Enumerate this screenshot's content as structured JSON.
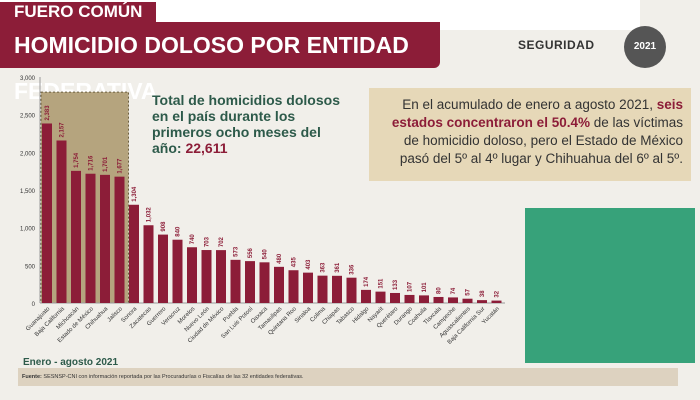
{
  "header": {
    "subtitle": "FUERO COMÚN",
    "title": "HOMICIDIO DOLOSO POR ENTIDAD FEDERATIVA",
    "logo": "SEGURIDAD",
    "seal": "2021"
  },
  "total": {
    "text": "Total de homicidios dolosos en el país durante los primeros ocho meses del año:",
    "value": "22,611"
  },
  "note": {
    "pre": "En el acumulado de enero a agosto 2021, ",
    "highlight": "seis estados concentraron el 50.4%",
    "post": " de las víctimas de homicidio doloso, pero el Estado de México pasó del 5º al 4º lugar y Chihuahua del 6º al 5º."
  },
  "period": "Enero - agosto 2021",
  "source": {
    "label": "Fuente:",
    "text": " SESNSP-CNI con información reportada por las Procuradurías o Fiscalías de las 32 entidades federativas."
  },
  "colors": {
    "bar": "#8c1d38",
    "highlight": "#b5a47e"
  },
  "chart_data": {
    "type": "bar",
    "title": "Homicidio doloso por entidad federativa",
    "categories": [
      "Guanajuato",
      "Baja California",
      "Michoacán",
      "Estado de México",
      "Chihuahua",
      "Jalisco",
      "Sonora",
      "Zacatecas",
      "Guerrero",
      "Veracruz",
      "Morelos",
      "Nuevo León",
      "Ciudad de México",
      "Puebla",
      "San Luis Potosí",
      "Oaxaca",
      "Tamaulipas",
      "Quintana Roo",
      "Sinaloa",
      "Colima",
      "Chiapas",
      "Tabasco",
      "Hidalgo",
      "Nayarit",
      "Querétaro",
      "Durango",
      "Coahuila",
      "Tlaxcala",
      "Campeche",
      "Aguascalientes",
      "Baja California Sur",
      "Yucatán"
    ],
    "values": [
      2383,
      2157,
      1754,
      1716,
      1701,
      1677,
      1304,
      1032,
      908,
      840,
      740,
      703,
      702,
      573,
      556,
      540,
      480,
      435,
      403,
      363,
      361,
      336,
      174,
      151,
      133,
      107,
      101,
      80,
      74,
      57,
      38,
      32
    ],
    "labels": [
      "2,383",
      "2,157",
      "1,754",
      "1,716",
      "1,701",
      "1,677",
      "1,304",
      "1,032",
      "908",
      "840",
      "740",
      "703",
      "702",
      "573",
      "556",
      "540",
      "480",
      "435",
      "403",
      "363",
      "361",
      "336",
      "174",
      "151",
      "133",
      "107",
      "101",
      "80",
      "74",
      "57",
      "38",
      "32"
    ],
    "yticks": [
      "0",
      "500",
      "1,000",
      "1,500",
      "2,000",
      "2,500",
      "3,000"
    ],
    "ylim": [
      0,
      3000
    ],
    "highlighted_count": 6
  }
}
